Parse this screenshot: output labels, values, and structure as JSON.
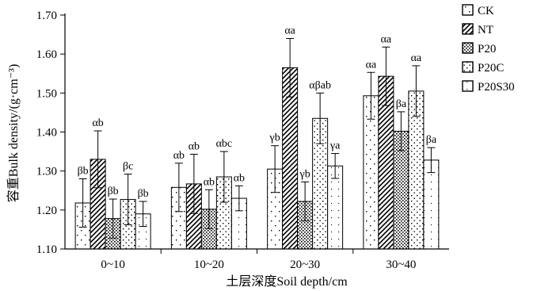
{
  "chart_data": {
    "type": "bar",
    "xlabel": "土层深度Soil depth/cm",
    "ylabel": "容重Bulk density/(g·cm⁻³)",
    "ylim": [
      1.1,
      1.7
    ],
    "yticks": [
      "1.10",
      "1.20",
      "1.30",
      "1.40",
      "1.50",
      "1.60",
      "1.70"
    ],
    "categories": [
      "0~10",
      "10~20",
      "20~30",
      "30~40"
    ],
    "legend_position": "top-right",
    "series": [
      {
        "name": "CK",
        "pattern": "dots-sparse",
        "values": [
          1.218,
          1.258,
          1.305,
          1.493
        ],
        "errors": [
          0.062,
          0.062,
          0.06,
          0.06
        ],
        "labels": [
          "βb",
          "αb",
          "γb",
          "αa"
        ]
      },
      {
        "name": "NT",
        "pattern": "diagonal",
        "values": [
          1.33,
          1.267,
          1.565,
          1.543
        ],
        "errors": [
          0.073,
          0.076,
          0.075,
          0.075
        ],
        "labels": [
          "αb",
          "αb",
          "αa",
          "αa"
        ]
      },
      {
        "name": "P20",
        "pattern": "dots-dense",
        "values": [
          1.178,
          1.202,
          1.222,
          1.402
        ],
        "errors": [
          0.05,
          0.05,
          0.05,
          0.05
        ],
        "labels": [
          "βb",
          "αb",
          "γb",
          "βa"
        ]
      },
      {
        "name": "P20C",
        "pattern": "dots-medium",
        "values": [
          1.227,
          1.285,
          1.435,
          1.505
        ],
        "errors": [
          0.065,
          0.065,
          0.065,
          0.065
        ],
        "labels": [
          "βc",
          "αbc",
          "αβab",
          "αa"
        ]
      },
      {
        "name": "P20S30",
        "pattern": "dots-light",
        "values": [
          1.19,
          1.23,
          1.313,
          1.328
        ],
        "errors": [
          0.032,
          0.032,
          0.032,
          0.032
        ],
        "labels": [
          "βb",
          "αb",
          "γa",
          "βa"
        ]
      }
    ]
  }
}
